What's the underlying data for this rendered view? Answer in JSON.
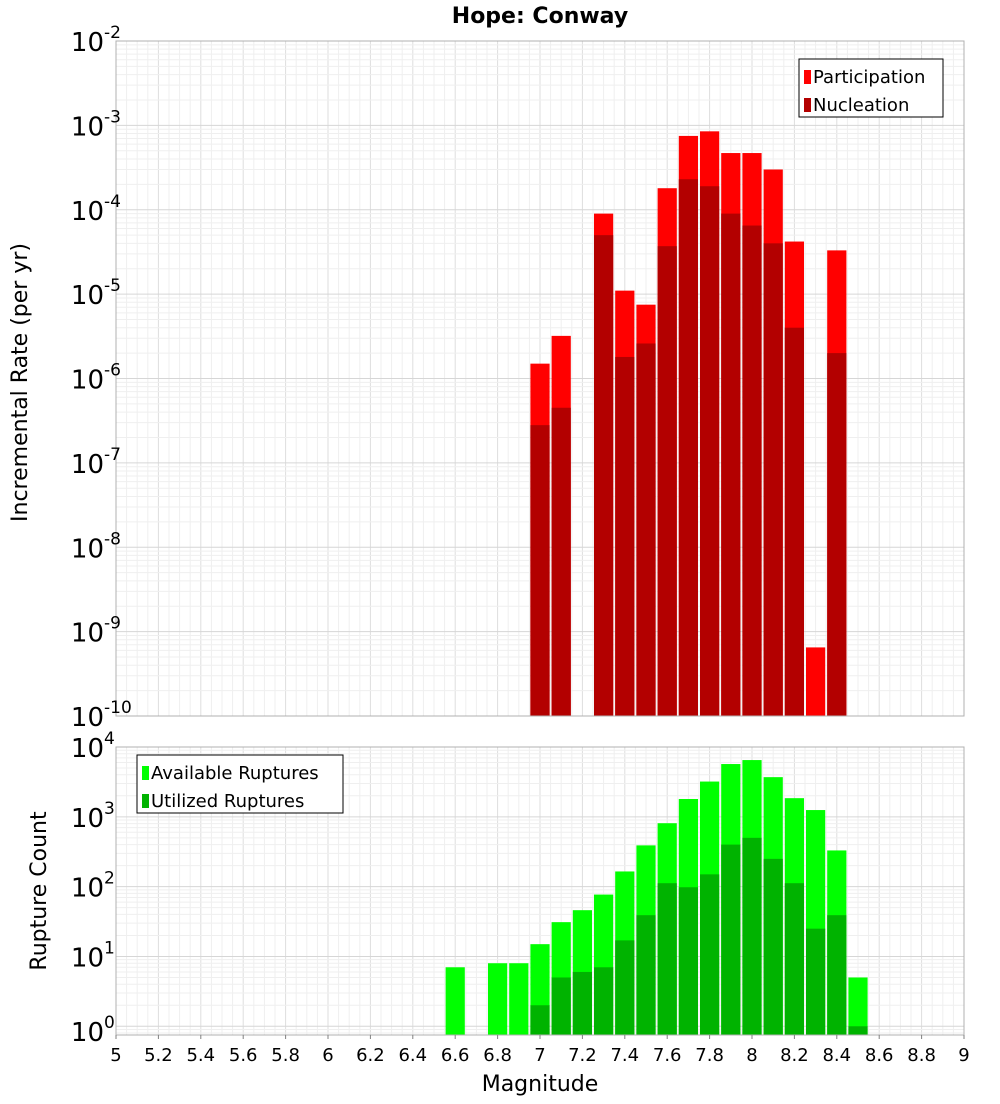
{
  "chart_data": [
    {
      "type": "bar",
      "title": "Hope: Conway",
      "ylabel": "Incremental Rate (per yr)",
      "y_scale": "log",
      "ylim": [
        1e-10,
        0.01
      ],
      "y_ticks": [
        {
          "base": "10",
          "exp": "-2"
        },
        {
          "base": "10",
          "exp": "-3"
        },
        {
          "base": "10",
          "exp": "-4"
        },
        {
          "base": "10",
          "exp": "-5"
        },
        {
          "base": "10",
          "exp": "-6"
        },
        {
          "base": "10",
          "exp": "-7"
        },
        {
          "base": "10",
          "exp": "-8"
        },
        {
          "base": "10",
          "exp": "-9"
        },
        {
          "base": "10",
          "exp": "-10"
        }
      ],
      "legend_position": "top-right",
      "series": [
        {
          "name": "Participation",
          "color": "#ff0000",
          "x": [
            7.0,
            7.1,
            7.3,
            7.4,
            7.5,
            7.6,
            7.7,
            7.8,
            7.9,
            8.0,
            8.1,
            8.2,
            8.3,
            8.4
          ],
          "values": [
            1.5e-06,
            3.2e-06,
            9e-05,
            1.1e-05,
            7.5e-06,
            0.00018,
            0.00075,
            0.00085,
            0.00047,
            0.00047,
            0.0003,
            4.2e-05,
            6.5e-10,
            3.3e-05
          ]
        },
        {
          "name": "Nucleation",
          "color": "#b30000",
          "x": [
            7.0,
            7.1,
            7.3,
            7.4,
            7.5,
            7.6,
            7.7,
            7.8,
            7.9,
            8.0,
            8.1,
            8.2,
            8.4
          ],
          "values": [
            2.8e-07,
            4.5e-07,
            5e-05,
            1.8e-06,
            2.6e-06,
            3.7e-05,
            0.00023,
            0.00019,
            9e-05,
            6.5e-05,
            4e-05,
            4e-06,
            2e-06
          ]
        }
      ]
    },
    {
      "type": "bar",
      "xlabel": "Magnitude",
      "ylabel": "Rupture Count",
      "y_scale": "log",
      "ylim": [
        0.75,
        10000
      ],
      "y_ticks": [
        {
          "base": "10",
          "exp": "4"
        },
        {
          "base": "10",
          "exp": "3"
        },
        {
          "base": "10",
          "exp": "2"
        },
        {
          "base": "10",
          "exp": "1"
        },
        {
          "base": "10",
          "exp": "0"
        }
      ],
      "xlim": [
        5,
        9
      ],
      "x_ticks": [
        "5",
        "5.2",
        "5.4",
        "5.6",
        "5.8",
        "6",
        "6.2",
        "6.4",
        "6.6",
        "6.8",
        "7",
        "7.2",
        "7.4",
        "7.6",
        "7.8",
        "8",
        "8.2",
        "8.4",
        "8.6",
        "8.8",
        "9"
      ],
      "legend_position": "top-left",
      "series": [
        {
          "name": "Available Ruptures",
          "color": "#00ff00",
          "x": [
            6.6,
            6.8,
            6.9,
            7.0,
            7.1,
            7.2,
            7.3,
            7.4,
            7.5,
            7.6,
            7.7,
            7.8,
            7.9,
            8.0,
            8.1,
            8.2,
            8.3,
            8.4,
            8.5
          ],
          "values": [
            7,
            8,
            8,
            15,
            31,
            46,
            77,
            165,
            390,
            810,
            1800,
            3200,
            5700,
            6500,
            3700,
            1850,
            1250,
            330,
            5
          ]
        },
        {
          "name": "Utilized Ruptures",
          "color": "#00b300",
          "x": [
            7.0,
            7.1,
            7.2,
            7.3,
            7.4,
            7.5,
            7.6,
            7.7,
            7.8,
            7.9,
            8.0,
            8.1,
            8.2,
            8.3,
            8.4,
            8.5
          ],
          "values": [
            2,
            5,
            6,
            7,
            17,
            39,
            112,
            98,
            150,
            400,
            500,
            250,
            112,
            25,
            39,
            1
          ]
        }
      ]
    }
  ]
}
